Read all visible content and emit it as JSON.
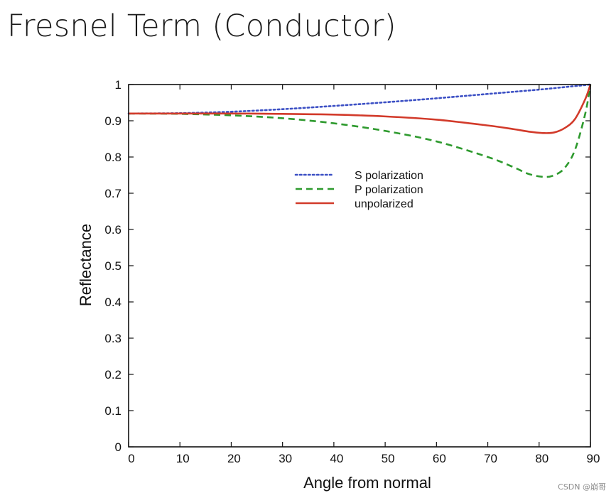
{
  "slide": {
    "title": "Fresnel Term (Conductor)"
  },
  "watermark": "CSDN @崩哥",
  "chart_data": {
    "type": "line",
    "title": "Fresnel Term (Conductor)",
    "xlabel": "Angle from normal",
    "ylabel": "Reflectance",
    "xlim": [
      0,
      90
    ],
    "ylim": [
      0,
      1
    ],
    "x_ticks": [
      0,
      10,
      20,
      30,
      40,
      50,
      60,
      70,
      80,
      90
    ],
    "y_ticks": [
      0,
      0.1,
      0.2,
      0.3,
      0.4,
      0.5,
      0.6,
      0.7,
      0.8,
      0.9,
      1
    ],
    "grid": false,
    "legend_position": "center-right",
    "series": [
      {
        "name": "S polarization",
        "style": "dotted",
        "color": "#3b4fc4",
        "points": [
          [
            0,
            0.92
          ],
          [
            10,
            0.921
          ],
          [
            20,
            0.925
          ],
          [
            30,
            0.932
          ],
          [
            40,
            0.941
          ],
          [
            50,
            0.951
          ],
          [
            60,
            0.962
          ],
          [
            70,
            0.974
          ],
          [
            80,
            0.986
          ],
          [
            85,
            0.993
          ],
          [
            90,
            1.0
          ]
        ]
      },
      {
        "name": "P polarization",
        "style": "dashed",
        "color": "#2e9a2e",
        "points": [
          [
            0,
            0.92
          ],
          [
            10,
            0.919
          ],
          [
            20,
            0.915
          ],
          [
            30,
            0.907
          ],
          [
            40,
            0.893
          ],
          [
            50,
            0.872
          ],
          [
            60,
            0.843
          ],
          [
            70,
            0.8
          ],
          [
            75,
            0.772
          ],
          [
            78,
            0.753
          ],
          [
            81,
            0.745
          ],
          [
            83,
            0.75
          ],
          [
            85,
            0.77
          ],
          [
            87,
            0.82
          ],
          [
            89,
            0.92
          ],
          [
            90,
            1.0
          ]
        ]
      },
      {
        "name": "unpolarized",
        "style": "solid",
        "color": "#d23a2a",
        "points": [
          [
            0,
            0.92
          ],
          [
            10,
            0.92
          ],
          [
            20,
            0.92
          ],
          [
            30,
            0.919
          ],
          [
            40,
            0.917
          ],
          [
            50,
            0.912
          ],
          [
            60,
            0.903
          ],
          [
            70,
            0.887
          ],
          [
            75,
            0.877
          ],
          [
            78,
            0.87
          ],
          [
            81,
            0.866
          ],
          [
            83,
            0.868
          ],
          [
            85,
            0.88
          ],
          [
            87,
            0.905
          ],
          [
            89,
            0.96
          ],
          [
            90,
            1.0
          ]
        ]
      }
    ]
  }
}
